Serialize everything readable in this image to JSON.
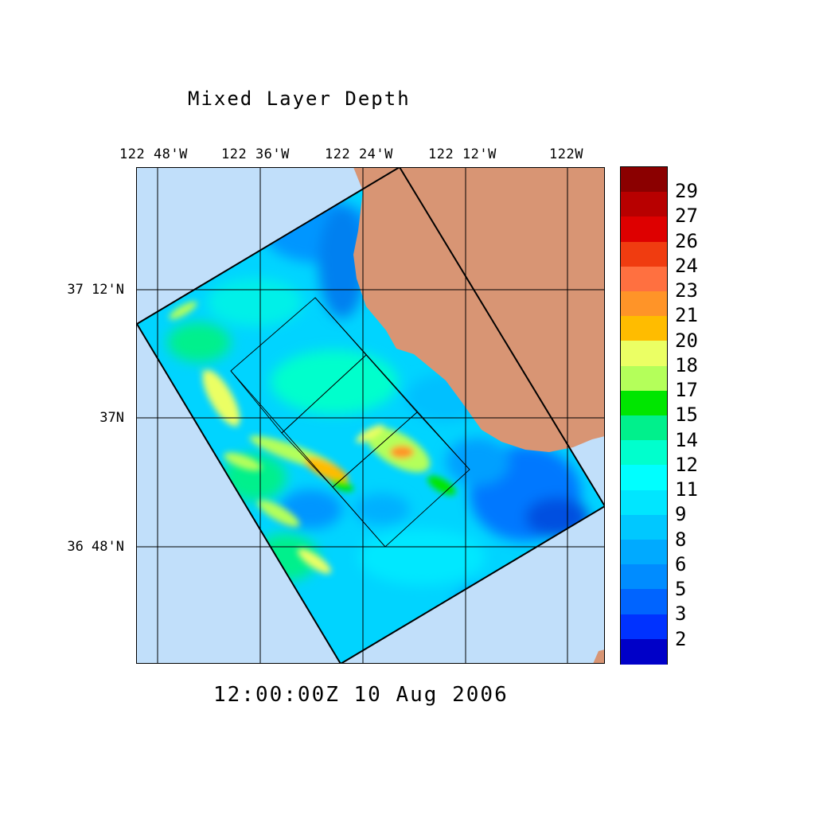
{
  "title": "Mixed Layer Depth",
  "timestamp": "12:00:00Z  10 Aug 2006",
  "longitude_labels": [
    "122 48'W",
    "122 36'W",
    "122 24'W",
    "122 12'W",
    "122W"
  ],
  "latitude_labels": [
    "37 12'N",
    "37N",
    "36 48'N"
  ],
  "colorbar": {
    "labels": [
      "29",
      "27",
      "26",
      "24",
      "23",
      "21",
      "20",
      "18",
      "17",
      "15",
      "14",
      "12",
      "11",
      "9",
      "8",
      "6",
      "5",
      "3",
      "2"
    ],
    "colors": [
      "#8b0000",
      "#b80000",
      "#de0000",
      "#f03c10",
      "#ff7040",
      "#ff9428",
      "#ffbc00",
      "#ebff64",
      "#b4ff5a",
      "#00e600",
      "#00f08c",
      "#00ffcd",
      "#00ffff",
      "#00e6ff",
      "#00c8ff",
      "#00aaff",
      "#008cff",
      "#0064ff",
      "#0032ff",
      "#0000c8"
    ]
  },
  "colors": {
    "land": "#d89574",
    "ocean_background": "#c1dffa",
    "frame": "#000000"
  }
}
